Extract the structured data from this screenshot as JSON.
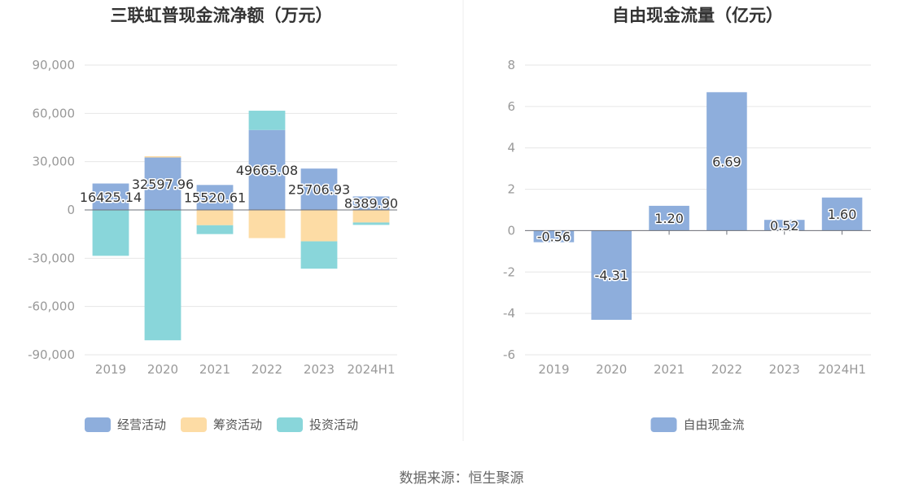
{
  "source": "数据来源：恒生聚源",
  "chart_data": [
    {
      "type": "bar",
      "stacked": true,
      "title": "三联虹普现金流净额（万元）",
      "categories": [
        "2019",
        "2020",
        "2021",
        "2022",
        "2023",
        "2024H1"
      ],
      "ylim": [
        -90000,
        90000
      ],
      "yticks": [
        90000,
        60000,
        30000,
        0,
        -30000,
        -60000,
        -90000
      ],
      "ytick_labels": [
        "90,000",
        "60,000",
        "30,000",
        "0",
        "-30,000",
        "-60,000",
        "-90,000"
      ],
      "grid": true,
      "legend_position": "bottom",
      "series": [
        {
          "name": "经营活动",
          "color": "#8eaedc",
          "values": [
            16425.14,
            32597.96,
            15520.61,
            49665.08,
            25706.93,
            8389.9
          ]
        },
        {
          "name": "筹资活动",
          "color": "#fddca5",
          "values": [
            0,
            800,
            -9500,
            -17500,
            -19500,
            -7800
          ]
        },
        {
          "name": "投资活动",
          "color": "#89d6da",
          "values": [
            -28500,
            -81000,
            -5500,
            12000,
            -17000,
            -1500
          ]
        }
      ],
      "data_labels": [
        "16425.14",
        "32597.96",
        "15520.61",
        "49665.08",
        "25706.93",
        "8389.90"
      ]
    },
    {
      "type": "bar",
      "title": "自由现金流量（亿元）",
      "categories": [
        "2019",
        "2020",
        "2021",
        "2022",
        "2023",
        "2024H1"
      ],
      "ylim": [
        -6,
        8
      ],
      "yticks": [
        8,
        6,
        4,
        2,
        0,
        -2,
        -4,
        -6
      ],
      "ytick_labels": [
        "8",
        "6",
        "4",
        "2",
        "0",
        "-2",
        "-4",
        "-6"
      ],
      "grid": true,
      "legend_position": "bottom",
      "series": [
        {
          "name": "自由现金流",
          "color": "#8eaedc",
          "values": [
            -0.56,
            -4.31,
            1.2,
            6.69,
            0.52,
            1.6
          ]
        }
      ],
      "data_labels": [
        "-0.56",
        "-4.31",
        "1.20",
        "6.69",
        "0.52",
        "1.60"
      ]
    }
  ]
}
